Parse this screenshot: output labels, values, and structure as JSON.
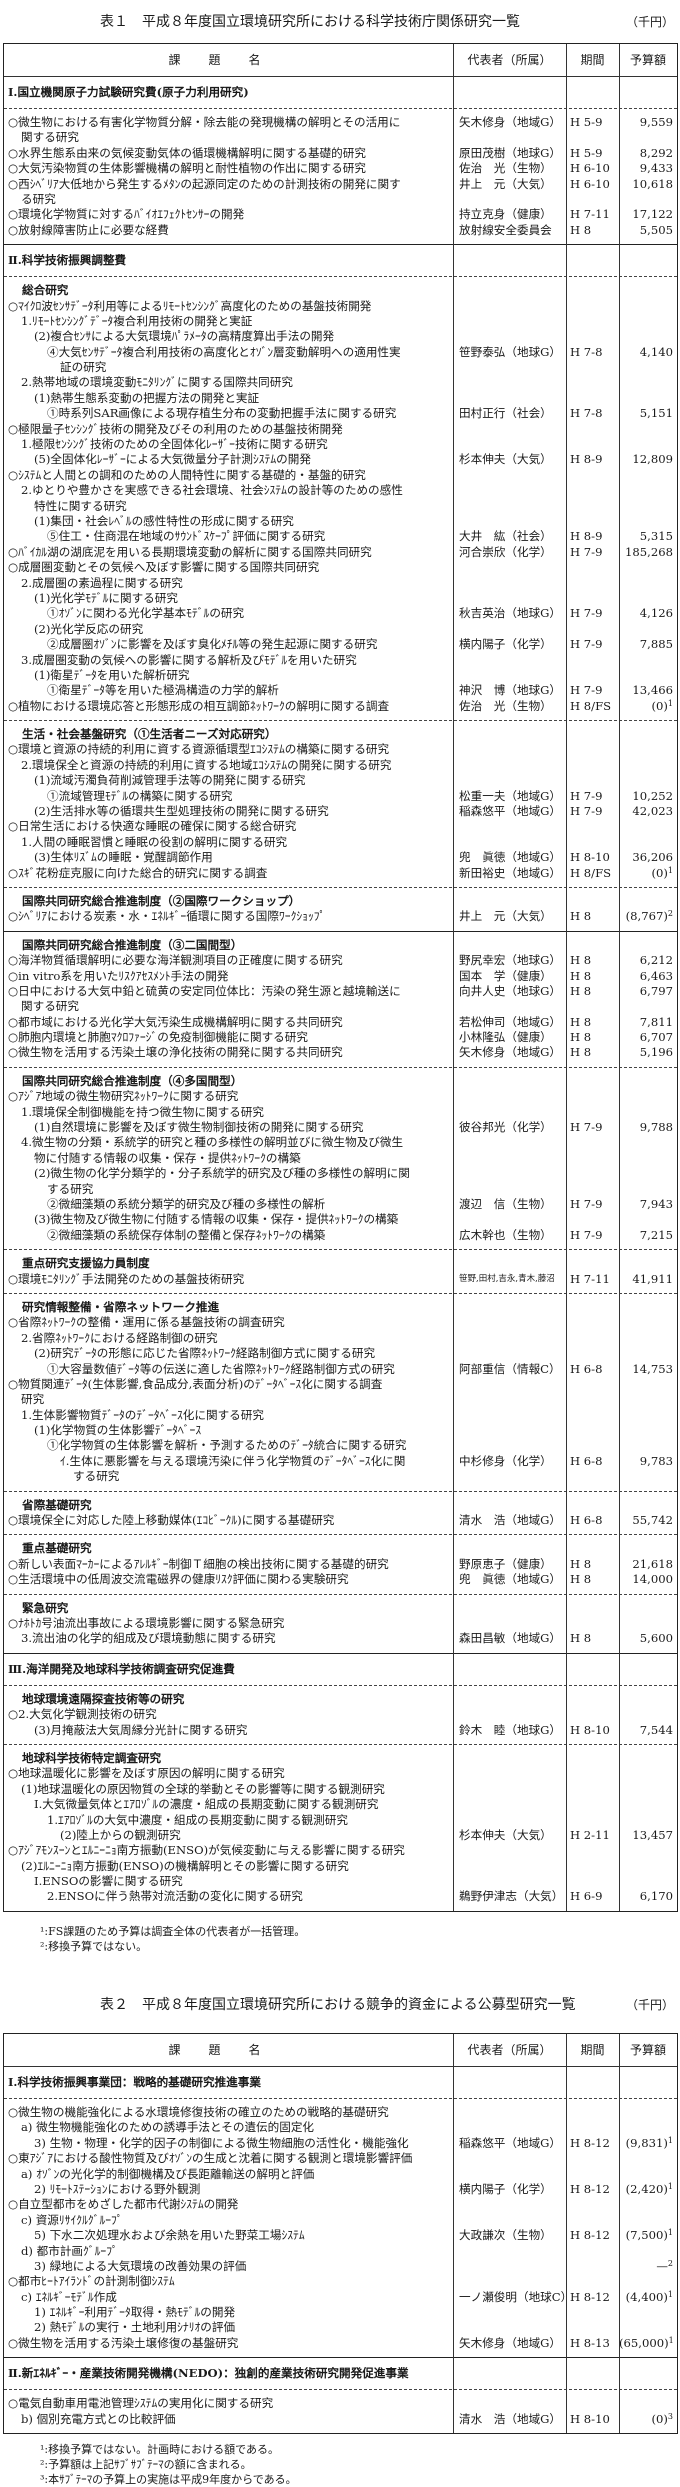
{
  "table1": {
    "title": "表１　平成８年度国立環境研究所における科学技術庁関係研究一覧",
    "unit": "（千円）",
    "headers": [
      "課題名",
      "代表者（所属）",
      "期間",
      "予算額"
    ],
    "blocks": [
      {
        "sep": "none",
        "section": true,
        "lines": [
          {
            "t": "Ⅰ.国立機関原子力試験研究費(原子力利用研究)"
          }
        ]
      },
      {
        "sep": "dashed",
        "lines": [
          {
            "t": "○微生物における有害化学物質分解・除去能の発現機構の解明とその活用に",
            "n": "矢木修身（地域G）",
            "p": "H 5-9",
            "b": "9,559"
          },
          {
            "t": "関する研究",
            "i": 1
          },
          {
            "t": "○水界生態系由来の気候変動気体の循環機構解明に関する基礎的研究",
            "n": "原田茂樹（地球G）",
            "p": "H 5-9",
            "b": "8,292"
          },
          {
            "t": "○大気汚染物質の生体影響機構の解明と耐性植物の作出に関する研究",
            "n": "佐治　光（生物）",
            "p": "H 6-10",
            "b": "9,433"
          },
          {
            "t": "○西ｼﾍﾞﾘｱ大低地から発生するﾒﾀﾝの起源同定のための計測技術の開発に関す",
            "n": "井上　元（大気）",
            "p": "H 6-10",
            "b": "10,618"
          },
          {
            "t": "る研究",
            "i": 1
          },
          {
            "t": "○環境化学物質に対するﾊﾞｲｵｴﾌｪｸﾄｾﾝｻｰの開発",
            "n": "持立克身（健康）",
            "p": "H 7-11",
            "b": "17,122"
          },
          {
            "t": "○放射線障害防止に必要な経費",
            "n": "放射線安全委員会",
            "p": "H 8",
            "b": "5,505"
          }
        ]
      },
      {
        "sep": "solid",
        "section": true,
        "lines": [
          {
            "t": "Ⅱ.科学技術振興調整費"
          }
        ]
      },
      {
        "sep": "dashed",
        "lines": [
          {
            "t": "総合研究",
            "h": true
          },
          {
            "t": "○ﾏｲｸﾛ波ｾﾝｻﾃﾞｰﾀ利用等によるﾘﾓｰﾄｾﾝｼﾝｸﾞ高度化のための基盤技術開発"
          },
          {
            "t": "1.ﾘﾓｰﾄｾﾝｼﾝｸﾞﾃﾞｰﾀ複合利用技術の開発と実証",
            "i": 1
          },
          {
            "t": "(2)複合ｾﾝｻによる大気環境ﾊﾟﾗﾒｰﾀの高精度算出手法の開発",
            "i": 2
          },
          {
            "t": "④大気ｾﾝｻﾃﾞｰﾀ複合利用技術の高度化とｵｿﾞﾝ層変動解明への適用性実",
            "i": 3,
            "n": "笹野泰弘（地球G）",
            "p": "H 7-8",
            "b": "4,140"
          },
          {
            "t": "証の研究",
            "i": 4
          },
          {
            "t": "2.熱帯地域の環境変動ﾓﾆﾀﾘﾝｸﾞに関する国際共同研究",
            "i": 1
          },
          {
            "t": "(1)熱帯生態系変動の把握方法の開発と実証",
            "i": 2
          },
          {
            "t": "①時系列SAR画像による現存植生分布の変動把握手法に関する研究",
            "i": 3,
            "n": "田村正行（社会）",
            "p": "H 7-8",
            "b": "5,151"
          },
          {
            "t": "○極限量子ｾﾝｼﾝｸﾞ技術の開発及びその利用のための基盤技術開発"
          },
          {
            "t": "1.極限ｾﾝｼﾝｸﾞ技術のための全固体化ﾚｰｻﾞｰ技術に関する研究",
            "i": 1
          },
          {
            "t": "(5)全固体化ﾚｰｻﾞｰによる大気微量分子計測ｼｽﾃﾑの開発",
            "i": 2,
            "n": "杉本伸夫（大気）",
            "p": "H 8-9",
            "b": "12,809"
          },
          {
            "t": "○ｼｽﾃﾑと人間との調和のための人間特性に関する基礎的・基盤的研究"
          },
          {
            "t": "2.ゆとりや豊かさを実感できる社会環境、社会ｼｽﾃﾑの設計等のための感性",
            "i": 1
          },
          {
            "t": "特性に関する研究",
            "i": 2
          },
          {
            "t": "(1)集団・社会ﾚﾍﾞﾙの感性特性の形成に関する研究",
            "i": 2
          },
          {
            "t": "⑤住工・住商混在地域のｻｳﾝﾄﾞｽｹｰﾌﾟ評価に関する研究",
            "i": 3,
            "n": "大井　紘（社会）",
            "p": "H 8-9",
            "b": "5,315"
          },
          {
            "t": "○ﾊﾞｲｶﾙ湖の湖底泥を用いる長期環境変動の解析に関する国際共同研究",
            "n": "河合崇欣（化学）",
            "p": "H 7-9",
            "b": "185,268"
          },
          {
            "t": "○成層圏変動とその気候へ及ぼす影響に関する国際共同研究"
          },
          {
            "t": "2.成層圏の素過程に関する研究",
            "i": 1
          },
          {
            "t": "(1)光化学ﾓﾃﾞﾙに関する研究",
            "i": 2
          },
          {
            "t": "①ｵｿﾞﾝに関わる光化学基本ﾓﾃﾞﾙの研究",
            "i": 3,
            "n": "秋吉英治（地球G）",
            "p": "H 7-9",
            "b": "4,126"
          },
          {
            "t": "(2)光化学反応の研究",
            "i": 2
          },
          {
            "t": "②成層圏ｵｿﾞﾝに影響を及ぼす臭化ﾒﾁﾙ等の発生起源に関する研究",
            "i": 3,
            "n": "横内陽子（化学）",
            "p": "H 7-9",
            "b": "7,885"
          },
          {
            "t": "3.成層圏変動の気候への影響に関する解析及びﾓﾃﾞﾙを用いた研究",
            "i": 1
          },
          {
            "t": "(1)衛星ﾃﾞｰﾀを用いた解析研究",
            "i": 2
          },
          {
            "t": "①衛星ﾃﾞｰﾀ等を用いた極渦構造の力学的解析",
            "i": 3,
            "n": "神沢　博（地球G）",
            "p": "H 7-9",
            "b": "13,466"
          },
          {
            "t": "○植物における環境応答と形態形成の相互調節ﾈｯﾄﾜｰｸの解明に関する調査",
            "n": "佐治　光（生物）",
            "p": "H 8/FS",
            "b": "(0)",
            "s": "1"
          }
        ]
      },
      {
        "sep": "dashed",
        "lines": [
          {
            "t": "生活・社会基盤研究（①生活者ニーズ対応研究）",
            "h": true
          },
          {
            "t": "○環境と資源の持続的利用に資する資源循環型ｴｺｼｽﾃﾑの構築に関する研究"
          },
          {
            "t": "2.環境保全と資源の持続的利用に資する地域ｴｺｼｽﾃﾑの開発に関する研究",
            "i": 1
          },
          {
            "t": "(1)流域汚濁負荷削減管理手法等の開発に関する研究",
            "i": 2
          },
          {
            "t": "①流域管理ﾓﾃﾞﾙの構築に関する研究",
            "i": 3,
            "n": "松重一夫（地域G）",
            "p": "H 7-9",
            "b": "10,252"
          },
          {
            "t": "(2)生活排水等の循環共生型処理技術の開発に関する研究",
            "i": 2,
            "n": "稲森悠平（地域G）",
            "p": "H 7-9",
            "b": "42,023"
          },
          {
            "t": "○日常生活における快適な睡眠の確保に関する総合研究"
          },
          {
            "t": "1.人間の睡眠習慣と睡眠の役割の解明に関する研究",
            "i": 1
          },
          {
            "t": "(3)生体ﾘｽﾞﾑの睡眠・覚醒調節作用",
            "i": 2,
            "n": "兜　眞徳（地域G）",
            "p": "H 8-10",
            "b": "36,206"
          },
          {
            "t": "○ｽｷﾞ花粉症克服に向けた総合的研究に関する調査",
            "n": "新田裕史（地域G）",
            "p": "H 8/FS",
            "b": "(0)",
            "s": "1"
          }
        ]
      },
      {
        "sep": "dashed",
        "lines": [
          {
            "t": "国際共同研究総合推進制度（②国際ワークショップ）",
            "h": true
          },
          {
            "t": "○ｼﾍﾞﾘｱにおける炭素・水・ｴﾈﾙｷﾞｰ循環に関する国際ﾜｰｸｼｮｯﾌﾟ",
            "n": "井上　元（大気）",
            "p": "H 8",
            "b": "(8,767)",
            "s": "2"
          }
        ]
      },
      {
        "sep": "solid",
        "lines": [
          {
            "t": "国際共同研究総合推進制度（③二国間型）",
            "h": true
          },
          {
            "t": "○海洋物質循環解明に必要な海洋観測項目の正確度に関する研究",
            "n": "野尻幸宏（地球G）",
            "p": "H 8",
            "b": "6,212"
          },
          {
            "t": "○in vitro系を用いたﾘｽｸｱｾｽﾒﾝﾄ手法の開発",
            "n": "国本　学（健康）",
            "p": "H 8",
            "b": "6,463"
          },
          {
            "t": "○日中における大気中鉛と硫黄の安定同位体比：汚染の発生源と越境輸送に",
            "n": "向井人史（地球G）",
            "p": "H 8",
            "b": "6,797"
          },
          {
            "t": "関する研究",
            "i": 1
          },
          {
            "t": "○都市域における光化学大気汚染生成機構解明に関する共同研究",
            "n": "若松伸司（地域G）",
            "p": "H 8",
            "b": "7,811"
          },
          {
            "t": "○肺胞内環境と肺胞ﾏｸﾛﾌｧｰｼﾞの免疫制御機能に関する研究",
            "n": "小林隆弘（健康）",
            "p": "H 8",
            "b": "6,707"
          },
          {
            "t": "○微生物を活用する汚染土壌の浄化技術の開発に関する共同研究",
            "n": "矢木修身（地域G）",
            "p": "H 8",
            "b": "5,196"
          }
        ]
      },
      {
        "sep": "dashed",
        "lines": [
          {
            "t": "国際共同研究総合推進制度（④多国間型）",
            "h": true
          },
          {
            "t": "○ｱｼﾞｱ地域の微生物研究ﾈｯﾄﾜｰｸに関する研究"
          },
          {
            "t": "1.環境保全制御機能を持つ微生物に関する研究",
            "i": 1
          },
          {
            "t": "(1)自然環境に影響を及ぼす微生物制御技術の開発に関する研究",
            "i": 2,
            "n": "彼谷邦光（化学）",
            "p": "H 7-9",
            "b": "9,788"
          },
          {
            "t": "4.微生物の分類・系統学的研究と種の多様性の解明並びに微生物及び微生",
            "i": 1
          },
          {
            "t": "物に付随する情報の収集・保存・提供ﾈｯﾄﾜｰｸの構築",
            "i": 2
          },
          {
            "t": "(2)微生物の化学分類学的・分子系統学的研究及び種の多様性の解明に関",
            "i": 2
          },
          {
            "t": "する研究",
            "i": 3
          },
          {
            "t": "②微細藻類の系統分類学的研究及び種の多様性の解析",
            "i": 3,
            "n": "渡辺　信（生物）",
            "p": "H 7-9",
            "b": "7,943"
          },
          {
            "t": "(3)微生物及び微生物に付随する情報の収集・保存・提供ﾈｯﾄﾜｰｸの構築",
            "i": 2
          },
          {
            "t": "②微細藻類の系統保存体制の整備と保存ﾈｯﾄﾜｰｸの構築",
            "i": 3,
            "n": "広木幹也（生物）",
            "p": "H 7-9",
            "b": "7,215"
          }
        ]
      },
      {
        "sep": "dashed",
        "lines": [
          {
            "t": "重点研究支援協力員制度",
            "h": true
          },
          {
            "t": "○環境ﾓﾆﾀﾘﾝｸﾞ手法開発のための基盤技術研究",
            "n": "笹野,田村,吉永,青木,藤沼",
            "small": true,
            "p": "H 7-11",
            "b": "41,911"
          }
        ]
      },
      {
        "sep": "dashed",
        "lines": [
          {
            "t": "研究情報整備・省際ネットワーク推進",
            "h": true
          },
          {
            "t": "○省際ﾈｯﾄﾜｰｸの整備・運用に係る基盤技術の調査研究"
          },
          {
            "t": "2.省際ﾈｯﾄﾜｰｸにおける経路制御の研究",
            "i": 1
          },
          {
            "t": "(2)研究ﾃﾞｰﾀの形態に応じた省際ﾈｯﾄﾜｰｸ経路制御方式に関する研究",
            "i": 2
          },
          {
            "t": "①大容量数値ﾃﾞｰﾀ等の伝送に適した省際ﾈｯﾄﾜｰｸ経路制御方式の研究",
            "i": 3,
            "n": "阿部重信（情報C）",
            "p": "H 6-8",
            "b": "14,753"
          },
          {
            "t": "○物質関連ﾃﾞｰﾀ(生体影響,食品成分,表面分析)のﾃﾞｰﾀﾍﾞｰｽ化に関する調査"
          },
          {
            "t": "研究",
            "i": 1
          },
          {
            "t": "1.生体影響物質ﾃﾞｰﾀのﾃﾞｰﾀﾍﾞｰｽ化に関する研究",
            "i": 1
          },
          {
            "t": "(1)化学物質の生体影響ﾃﾞｰﾀﾍﾞｰｽ",
            "i": 2
          },
          {
            "t": "①化学物質の生体影響を解析・予測するためのﾃﾞｰﾀ統合に関する研究",
            "i": 3
          },
          {
            "t": "ｲ.生体に悪影響を与える環境汚染に伴う化学物質のﾃﾞｰﾀﾍﾞｰｽ化に関",
            "i": 4,
            "n": "中杉修身（化学）",
            "p": "H 6-8",
            "b": "9,783"
          },
          {
            "t": "する研究",
            "i": 5
          }
        ]
      },
      {
        "sep": "dashed",
        "lines": [
          {
            "t": "省際基礎研究",
            "h": true
          },
          {
            "t": "○環境保全に対応した陸上移動媒体(ｴｺﾋﾞｰｸﾙ)に関する基礎研究",
            "n": "清水　浩（地域G）",
            "p": "H 6-8",
            "b": "55,742"
          }
        ]
      },
      {
        "sep": "dashed",
        "lines": [
          {
            "t": "重点基礎研究",
            "h": true
          },
          {
            "t": "○新しい表面ﾏｰｶｰによるｱﾚﾙｷﾞｰ制御Ｔ細胞の検出技術に関する基礎的研究",
            "n": "野原恵子（健康）",
            "p": "H 8",
            "b": "21,618"
          },
          {
            "t": "○生活環境中の低周波交流電磁界の健康ﾘｽｸ評価に関わる実験研究",
            "n": "兜　眞徳（地域G）",
            "p": "H 8",
            "b": "14,000"
          }
        ]
      },
      {
        "sep": "dashed",
        "lines": [
          {
            "t": "緊急研究",
            "h": true
          },
          {
            "t": "○ﾅﾎﾄｶ号油流出事故による環境影響に関する緊急研究"
          },
          {
            "t": "3.流出油の化学的組成及び環境動態に関する研究",
            "i": 1,
            "n": "森田昌敏（地域G）",
            "p": "H 8",
            "b": "5,600"
          }
        ]
      },
      {
        "sep": "solid",
        "section": true,
        "lines": [
          {
            "t": "Ⅲ.海洋開発及地球科学技術調査研究促進費"
          }
        ]
      },
      {
        "sep": "dashed",
        "lines": [
          {
            "t": "地球環境遠隔探査技術等の研究",
            "h": true
          },
          {
            "t": "○2.大気化学観測技術の研究"
          },
          {
            "t": "(3)月掩蔽法大気周縁分光計に関する研究",
            "i": 2,
            "n": "鈴木　睦（地球G）",
            "p": "H 8-10",
            "b": "7,544"
          }
        ]
      },
      {
        "sep": "dashed",
        "lines": [
          {
            "t": "地球科学技術特定調査研究",
            "h": true
          },
          {
            "t": "○地球温暖化に影響を及ぼす原因の解明に関する研究"
          },
          {
            "t": "(1)地球温暖化の原因物質の全球的挙動とその影響等に関する観測研究",
            "i": 1
          },
          {
            "t": "Ⅰ.大気微量気体とｴｱﾛｿﾞﾙの濃度・組成の長期変動に関する観測研究",
            "i": 2
          },
          {
            "t": "1.ｴｱﾛｿﾞﾙの大気中濃度・組成の長期変動に関する観測研究",
            "i": 3
          },
          {
            "t": "(2)陸上からの観測研究",
            "i": 4,
            "n": "杉本伸夫（大気）",
            "p": "H 2-11",
            "b": "13,457"
          },
          {
            "t": "○ｱｼﾞｱﾓﾝｽｰﾝとｴﾙﾆｰﾆｮ南方振動(ENSO)が気候変動に与える影響に関する研究"
          },
          {
            "t": "(2)ｴﾙﾆｰﾆｮ南方振動(ENSO)の機構解明とその影響に関する研究",
            "i": 1
          },
          {
            "t": "Ⅰ.ENSOの影響に関する研究",
            "i": 2
          },
          {
            "t": "2.ENSOに伴う熱帯対流活動の変化に関する研究",
            "i": 3,
            "n": "鵜野伊津志（大気）",
            "p": "H 6-9",
            "b": "6,170"
          }
        ]
      }
    ],
    "footnotes": [
      "¹:FS課題のため予算は調査全体の代表者が一括管理。",
      "²:移換予算ではない。"
    ]
  },
  "table2": {
    "title": "表２　平成８年度国立環境研究所における競争的資金による公募型研究一覧",
    "unit": "（千円）",
    "headers": [
      "課題名",
      "代表者（所属）",
      "期間",
      "予算額"
    ],
    "blocks": [
      {
        "sep": "none",
        "section": true,
        "lines": [
          {
            "t": "Ⅰ.科学技術振興事業団：戦略的基礎研究推進事業"
          }
        ]
      },
      {
        "sep": "dashed",
        "lines": [
          {
            "t": "○微生物の機能強化による水環境修復技術の確立のための戦略的基礎研究"
          },
          {
            "t": "a) 微生物機能強化のための誘導手法とその遺伝的固定化",
            "i": 1
          },
          {
            "t": "3) 生物・物理・化学的因子の制御による微生物細胞の活性化・機能強化",
            "i": 2,
            "n": "稲森悠平（地域G）",
            "p": "H 8-12",
            "b": "(9,831)",
            "s": "1"
          },
          {
            "t": "○東ｱｼﾞｱにおける酸性物質及びｵｿﾞﾝの生成と沈着に関する観測と環境影響評価"
          },
          {
            "t": "a) ｵｿﾞﾝの光化学的制御機構及び長距離輸送の解明と評価",
            "i": 1
          },
          {
            "t": "2) ﾘﾓｰﾄｽﾃｰｼｮﾝにおける野外観測",
            "i": 2,
            "n": "横内陽子（化学）",
            "p": "H 8-12",
            "b": "(2,420)",
            "s": "1"
          },
          {
            "t": "○自立型都市をめざした都市代謝ｼｽﾃﾑの開発"
          },
          {
            "t": "c) 資源ﾘｻｲｸﾙｸﾞﾙｰﾌﾟ",
            "i": 1
          },
          {
            "t": "5) 下水二次処理水および余熱を用いた野菜工場ｼｽﾃﾑ",
            "i": 2,
            "n": "大政謙次（生物）",
            "p": "H 8-12",
            "b": "(7,500)",
            "s": "1"
          },
          {
            "t": "d) 都市計画ｸﾞﾙｰﾌﾟ",
            "i": 1
          },
          {
            "t": "3) 緑地による大気環境の改善効果の評価",
            "i": 2,
            "b": "—",
            "s": "2"
          },
          {
            "t": "○都市ﾋｰﾄｱｲﾗﾝﾄﾞの計測制御ｼｽﾃﾑ"
          },
          {
            "t": "c) ｴﾈﾙｷﾞｰﾓﾃﾞﾙ作成",
            "i": 1,
            "n": "一ノ瀬俊明（地球C）",
            "p": "H 8-12",
            "b": "(4,400)",
            "s": "1"
          },
          {
            "t": "1) ｴﾈﾙｷﾞｰ利用ﾃﾞｰﾀ取得・熱ﾓﾃﾞﾙの開発",
            "i": 2
          },
          {
            "t": "2) 熱ﾓﾃﾞﾙの実行・土地利用ｼﾅﾘｵの評価",
            "i": 2
          },
          {
            "t": "○微生物を活用する汚染土壌修復の基盤研究",
            "n": "矢木修身（地域G）",
            "p": "H 8-13",
            "b": "(65,000)",
            "s": "1"
          }
        ]
      },
      {
        "sep": "solid",
        "section": true,
        "lines": [
          {
            "t": "Ⅱ.新ｴﾈﾙｷﾞｰ・産業技術開発機構(NEDO)：独創的産業技術研究開発促進事業"
          }
        ]
      },
      {
        "sep": "dashed",
        "lines": [
          {
            "t": "○電気自動車用電池管理ｼｽﾃﾑの実用化に関する研究"
          },
          {
            "t": "b) 個別充電方式との比較評価",
            "i": 1,
            "n": "清水　浩（地域G）",
            "p": "H 8-10",
            "b": "(0)",
            "s": "3"
          }
        ]
      }
    ],
    "footnotes": [
      "¹:移換予算ではない。計画時における額である。",
      "²:予算額は上記ｻﾌﾞｻﾌﾞﾃｰﾏの額に含まれる。",
      "³:本ｻﾌﾞﾃｰﾏの予算上の実施は平成9年度からである。"
    ]
  }
}
